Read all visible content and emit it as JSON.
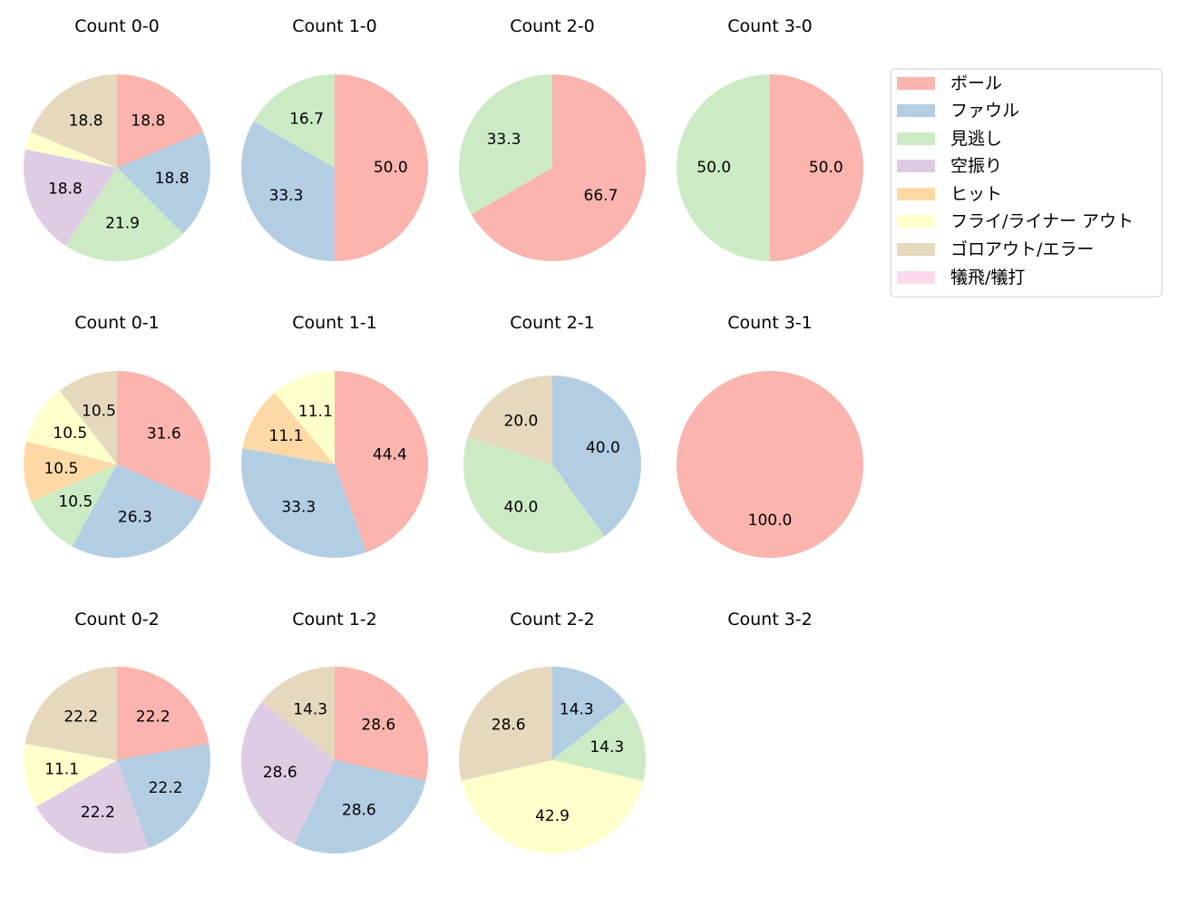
{
  "chart_data": {
    "type": "pie",
    "legend": {
      "placement": "top-right",
      "entries": [
        "ボール",
        "ファウル",
        "見逃し",
        "空振り",
        "ヒット",
        "フライ/ライナー アウト",
        "ゴロアウト/エラー",
        "犠飛/犠打"
      ]
    },
    "colors": [
      "#fbb4ae",
      "#b3cde3",
      "#ccebc5",
      "#decbe4",
      "#fed9a6",
      "#ffffcc",
      "#e5d8bd",
      "#fddaec"
    ],
    "charts": [
      {
        "title": "Count 0-0",
        "values": [
          18.8,
          18.8,
          21.9,
          18.8,
          0,
          3.1,
          18.8,
          0
        ]
      },
      {
        "title": "Count 1-0",
        "values": [
          50.0,
          33.3,
          16.7,
          0,
          0,
          0,
          0,
          0
        ]
      },
      {
        "title": "Count 2-0",
        "values": [
          66.7,
          0,
          33.3,
          0,
          0,
          0,
          0,
          0
        ]
      },
      {
        "title": "Count 3-0",
        "values": [
          50.0,
          0,
          50.0,
          0,
          0,
          0,
          0,
          0
        ]
      },
      {
        "title": "Count 0-1",
        "values": [
          31.6,
          26.3,
          10.5,
          0,
          10.5,
          10.5,
          10.5,
          0
        ]
      },
      {
        "title": "Count 1-1",
        "values": [
          44.4,
          33.3,
          0,
          0,
          11.1,
          11.1,
          0,
          0
        ]
      },
      {
        "title": "Count 2-1",
        "values": [
          0,
          40.0,
          40.0,
          0,
          0,
          0,
          20.0,
          0
        ]
      },
      {
        "title": "Count 3-1",
        "values": [
          100.0,
          0,
          0,
          0,
          0,
          0,
          0,
          0
        ]
      },
      {
        "title": "Count 0-2",
        "values": [
          22.2,
          22.2,
          0,
          22.2,
          0,
          11.1,
          22.2,
          0
        ]
      },
      {
        "title": "Count 1-2",
        "values": [
          28.6,
          28.6,
          0,
          28.6,
          0,
          0,
          14.3,
          0
        ]
      },
      {
        "title": "Count 2-2",
        "values": [
          0,
          14.3,
          14.3,
          0,
          0,
          42.9,
          28.6,
          0
        ]
      },
      {
        "title": "Count 3-2",
        "values": []
      }
    ]
  }
}
